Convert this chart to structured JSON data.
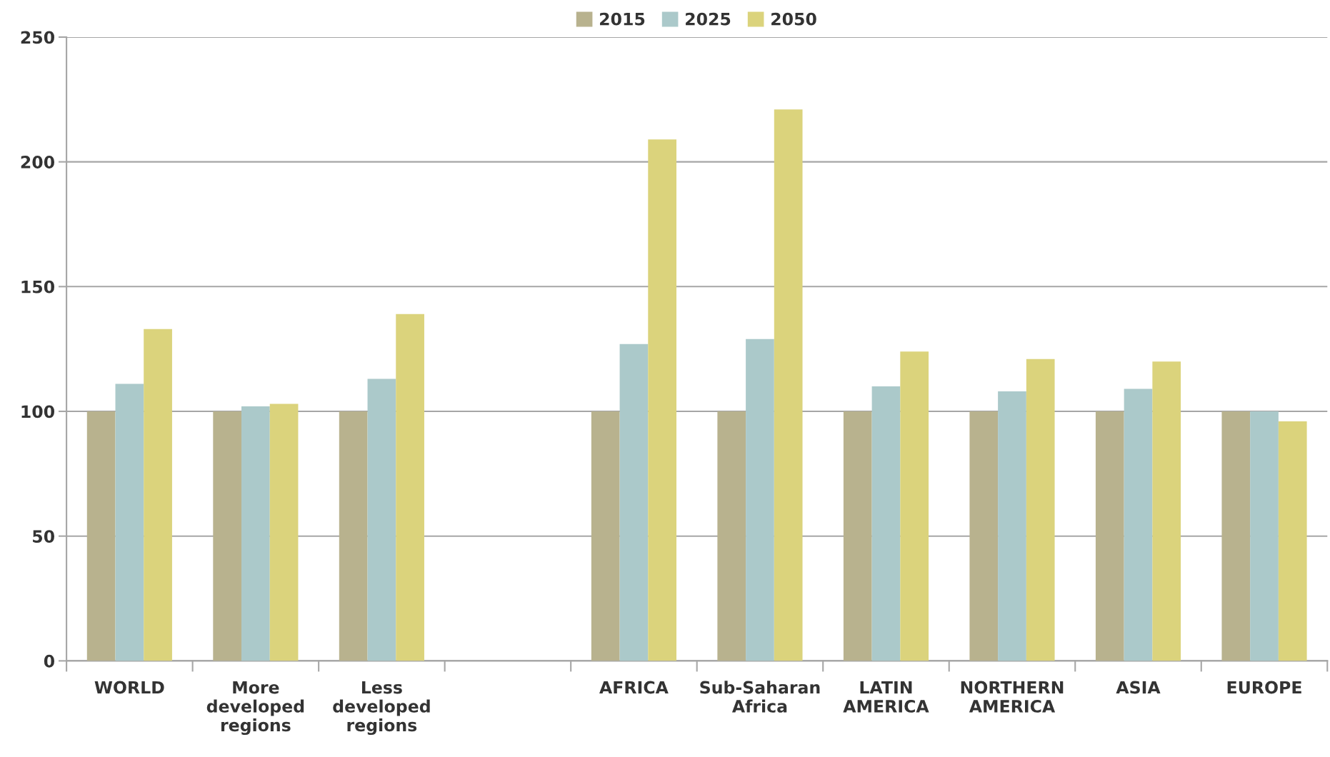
{
  "chart_data": {
    "type": "bar",
    "categories": [
      "WORLD",
      "More developed regions",
      "Less developed regions",
      null,
      "AFRICA",
      "Sub-Saharan Africa",
      "LATIN AMERICA",
      "NORTHERN AMERICA",
      "ASIA",
      "EUROPE"
    ],
    "series": [
      {
        "name": "2015",
        "color": "#b8b28e",
        "values": [
          100,
          100,
          100,
          null,
          100,
          100,
          100,
          100,
          100,
          100
        ]
      },
      {
        "name": "2025",
        "color": "#abc9ca",
        "values": [
          111,
          102,
          113,
          null,
          127,
          129,
          110,
          108,
          109,
          100
        ]
      },
      {
        "name": "2050",
        "color": "#dbd37c",
        "values": [
          133,
          103,
          139,
          null,
          209,
          221,
          124,
          121,
          120,
          96
        ]
      }
    ],
    "ylim": [
      0,
      250
    ],
    "yticks": [
      0,
      50,
      100,
      150,
      200,
      250
    ],
    "grid": "y",
    "legend": "top"
  }
}
